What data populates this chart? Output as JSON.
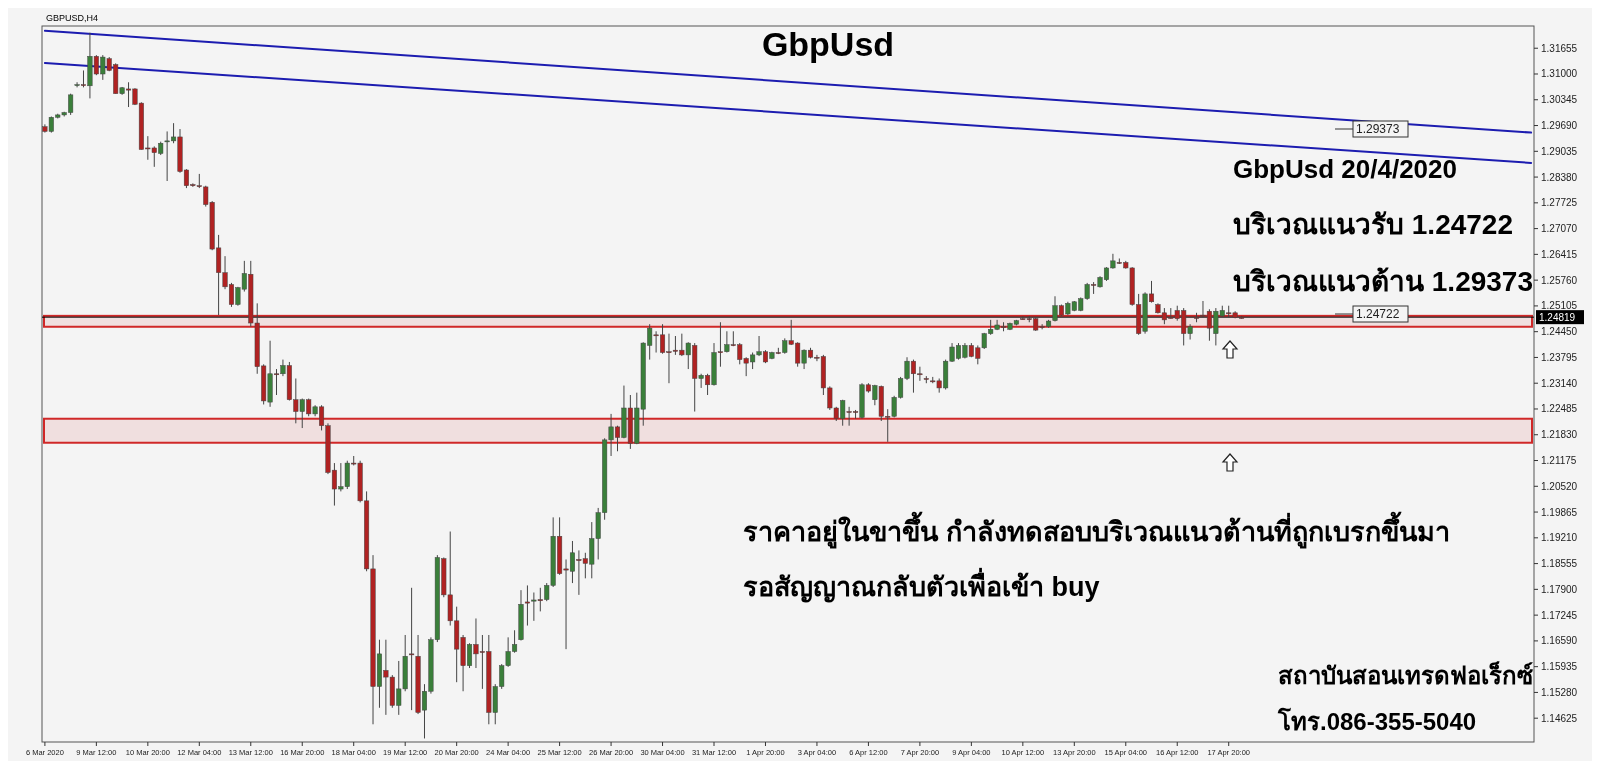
{
  "chart_data": {
    "type": "candlestick",
    "title": "GbpUsd",
    "categories": [
      "6 Mar 2020",
      null,
      null,
      null,
      null,
      null,
      null,
      null,
      "9 Mar 12:00",
      null,
      null,
      null,
      null,
      null,
      null,
      null,
      "10 Mar 20:00",
      null,
      null,
      null,
      null,
      null,
      null,
      null,
      "12 Mar 04:00",
      null,
      null,
      null,
      null,
      null,
      null,
      null,
      "13 Mar 12:00",
      null,
      null,
      null,
      null,
      null,
      null,
      null,
      "16 Mar 20:00",
      null,
      null,
      null,
      null,
      null,
      null,
      null,
      "18 Mar 04:00",
      null,
      null,
      null,
      null,
      null,
      null,
      null,
      "19 Mar 12:00",
      null,
      null,
      null,
      null,
      null,
      null,
      null,
      "20 Mar 20:00",
      null,
      null,
      null,
      null,
      null,
      null,
      null,
      "24 Mar 04:00",
      null,
      null,
      null,
      null,
      null,
      null,
      null,
      "25 Mar 12:00",
      null,
      null,
      null,
      null,
      null,
      null,
      null,
      "26 Mar 20:00",
      null,
      null,
      null,
      null,
      null,
      null,
      null,
      "30 Mar 04:00",
      null,
      null,
      null,
      null,
      null,
      null,
      null,
      "31 Mar 12:00",
      null,
      null,
      null,
      null,
      null,
      null,
      null,
      "1 Apr 20:00",
      null,
      null,
      null,
      null,
      null,
      null,
      null,
      "3 Apr 04:00",
      null,
      null,
      null,
      null,
      null,
      null,
      null,
      "6 Apr 12:00",
      null,
      null,
      null,
      null,
      null,
      null,
      null,
      "7 Apr 20:00",
      null,
      null,
      null,
      null,
      null,
      null,
      null,
      "9 Apr 04:00",
      null,
      null,
      null,
      null,
      null,
      null,
      null,
      "10 Apr 12:00",
      null,
      null,
      null,
      null,
      null,
      null,
      null,
      "13 Apr 20:00",
      null,
      null,
      null,
      null,
      null,
      null,
      null,
      "15 Apr 04:00",
      null,
      null,
      null,
      null,
      null,
      null,
      null,
      "16 Apr 12:00",
      null,
      null,
      null,
      null,
      null,
      null,
      null,
      "17 Apr 20:00",
      null,
      null,
      null,
      null,
      null,
      null,
      null,
      null,
      null,
      null,
      null,
      null,
      null,
      null,
      null,
      null,
      null,
      null,
      null,
      null,
      null,
      null,
      null,
      null,
      null,
      null,
      null,
      null,
      null,
      null,
      null,
      null,
      null,
      null,
      null,
      null,
      null,
      null,
      null,
      null,
      null,
      null,
      null,
      null,
      null,
      null,
      null
    ],
    "ohlc": [
      [
        1.2966,
        1.2972,
        1.2951,
        1.2954
      ],
      [
        1.2954,
        1.2992,
        1.2951,
        1.299
      ],
      [
        1.299,
        1.2999,
        1.2987,
        1.2996
      ],
      [
        1.2996,
        1.3004,
        1.2992,
        1.3002
      ],
      [
        1.3002,
        1.305,
        1.2996,
        1.3047
      ],
      [
        1.3071,
        1.3079,
        1.3066,
        1.3073
      ],
      [
        1.3073,
        1.3109,
        1.3066,
        1.3071
      ],
      [
        1.307,
        1.3205,
        1.3038,
        1.3145
      ],
      [
        1.3145,
        1.3148,
        1.3097,
        1.31
      ],
      [
        1.31,
        1.3148,
        1.3085,
        1.3143
      ],
      [
        1.3139,
        1.3143,
        1.3107,
        1.3109
      ],
      [
        1.3124,
        1.3127,
        1.305,
        1.305
      ],
      [
        1.305,
        1.3067,
        1.3047,
        1.3065
      ],
      [
        1.3062,
        1.3079,
        1.3016,
        1.3059
      ],
      [
        1.3062,
        1.3064,
        1.3021,
        1.3023
      ],
      [
        1.3026,
        1.3028,
        1.2908,
        1.2908
      ],
      [
        1.2912,
        1.2942,
        1.2882,
        1.291
      ],
      [
        1.2912,
        1.2916,
        1.2864,
        1.29
      ],
      [
        1.2898,
        1.2928,
        1.2894,
        1.2924
      ],
      [
        1.2928,
        1.2954,
        1.2828,
        1.293
      ],
      [
        1.293,
        1.2975,
        1.2924,
        1.294
      ],
      [
        1.294,
        1.296,
        1.2849,
        1.2852
      ],
      [
        1.2856,
        1.2858,
        1.281,
        1.2816
      ],
      [
        1.2819,
        1.2822,
        1.2813,
        1.2816
      ],
      [
        1.2816,
        1.2846,
        1.281,
        1.2814
      ],
      [
        1.2813,
        1.2816,
        1.2763,
        1.2768
      ],
      [
        1.2774,
        1.2777,
        1.2652,
        1.2655
      ],
      [
        1.2658,
        1.2691,
        1.2487,
        1.2595
      ],
      [
        1.2595,
        1.2637,
        1.2553,
        1.2559
      ],
      [
        1.2565,
        1.2569,
        1.2508,
        1.2514
      ],
      [
        1.2514,
        1.2559,
        1.2511,
        1.2557
      ],
      [
        1.2553,
        1.2625,
        1.2547,
        1.2593
      ],
      [
        1.2591,
        1.2625,
        1.2458,
        1.2467
      ],
      [
        1.2467,
        1.2517,
        1.2338,
        1.2356
      ],
      [
        1.2358,
        1.2362,
        1.226,
        1.2269
      ],
      [
        1.2266,
        1.2422,
        1.2254,
        1.2338
      ],
      [
        1.2338,
        1.235,
        1.2284,
        1.2337
      ],
      [
        1.2338,
        1.2374,
        1.2332,
        1.2359
      ],
      [
        1.2359,
        1.2368,
        1.227,
        1.2272
      ],
      [
        1.2272,
        1.2326,
        1.2212,
        1.2242
      ],
      [
        1.2242,
        1.2275,
        1.22,
        1.2272
      ],
      [
        1.2272,
        1.2275,
        1.223,
        1.2236
      ],
      [
        1.2236,
        1.2258,
        1.223,
        1.2254
      ],
      [
        1.2254,
        1.2258,
        1.2194,
        1.2206
      ],
      [
        1.2206,
        1.2212,
        1.2083,
        1.2087
      ],
      [
        1.2093,
        1.2111,
        1.2003,
        1.2045
      ],
      [
        1.2045,
        1.2111,
        1.2039,
        1.2051
      ],
      [
        1.2051,
        1.2117,
        1.2045,
        1.2111
      ],
      [
        1.2111,
        1.2129,
        1.2105,
        1.2109
      ],
      [
        1.2111,
        1.2117,
        1.2011,
        1.2015
      ],
      [
        1.2015,
        1.2039,
        1.1836,
        1.1842
      ],
      [
        1.1842,
        1.1877,
        1.1447,
        1.1543
      ],
      [
        1.1543,
        1.1662,
        1.1489,
        1.1626
      ],
      [
        1.1584,
        1.1662,
        1.1471,
        1.1567
      ],
      [
        1.1567,
        1.1572,
        1.1489,
        1.1495
      ],
      [
        1.1495,
        1.1608,
        1.1471,
        1.1537
      ],
      [
        1.1537,
        1.1674,
        1.1531,
        1.162
      ],
      [
        1.1626,
        1.1794,
        1.1483,
        1.1624
      ],
      [
        1.162,
        1.1674,
        1.1473,
        1.1477
      ],
      [
        1.1483,
        1.1549,
        1.1411,
        1.1531
      ],
      [
        1.1531,
        1.1668,
        1.1525,
        1.1662
      ],
      [
        1.1662,
        1.1877,
        1.1656,
        1.1871
      ],
      [
        1.1868,
        1.1871,
        1.177,
        1.1776
      ],
      [
        1.1776,
        1.1937,
        1.1698,
        1.171
      ],
      [
        1.171,
        1.1746,
        1.1554,
        1.1638
      ],
      [
        1.1668,
        1.1674,
        1.1531,
        1.1596
      ],
      [
        1.1596,
        1.1653,
        1.159,
        1.165
      ],
      [
        1.165,
        1.1716,
        1.159,
        1.1626
      ],
      [
        1.1632,
        1.1674,
        1.1537,
        1.163
      ],
      [
        1.1632,
        1.1674,
        1.1447,
        1.1477
      ],
      [
        1.1477,
        1.1549,
        1.1447,
        1.1543
      ],
      [
        1.1543,
        1.16,
        1.1537,
        1.1596
      ],
      [
        1.1596,
        1.1668,
        1.1593,
        1.1632
      ],
      [
        1.1632,
        1.1686,
        1.1629,
        1.165
      ],
      [
        1.1662,
        1.1788,
        1.166,
        1.1752
      ],
      [
        1.1758,
        1.18,
        1.1698,
        1.1755
      ],
      [
        1.176,
        1.1782,
        1.171,
        1.1763
      ],
      [
        1.1764,
        1.1794,
        1.1734,
        1.1761
      ],
      [
        1.1764,
        1.1806,
        1.176,
        1.18
      ],
      [
        1.18,
        1.1973,
        1.1796,
        1.1925
      ],
      [
        1.1925,
        1.1973,
        1.1827,
        1.183
      ],
      [
        1.1842,
        1.1866,
        1.1638,
        1.1839
      ],
      [
        1.1836,
        1.1913,
        1.1806,
        1.1883
      ],
      [
        1.1866,
        1.1889,
        1.1776,
        1.1863
      ],
      [
        1.1868,
        1.1883,
        1.1818,
        1.1856
      ],
      [
        1.1854,
        1.1961,
        1.1818,
        1.1919
      ],
      [
        1.1919,
        1.1997,
        1.1866,
        1.1985
      ],
      [
        1.1985,
        1.2174,
        1.1967,
        1.217
      ],
      [
        1.217,
        1.2236,
        1.2129,
        1.2203
      ],
      [
        1.2203,
        1.2206,
        1.2141,
        1.2176
      ],
      [
        1.2176,
        1.2308,
        1.2174,
        1.2251
      ],
      [
        1.2251,
        1.2284,
        1.2147,
        1.2161
      ],
      [
        1.2161,
        1.229,
        1.2159,
        1.2251
      ],
      [
        1.2248,
        1.2418,
        1.2206,
        1.2416
      ],
      [
        1.241,
        1.2464,
        1.2374,
        1.2454
      ],
      [
        1.2437,
        1.2446,
        1.2392,
        1.2435
      ],
      [
        1.2437,
        1.2464,
        1.2389,
        1.2392
      ],
      [
        1.2394,
        1.244,
        1.2314,
        1.2392
      ],
      [
        1.2398,
        1.2434,
        1.2386,
        1.2395
      ],
      [
        1.2398,
        1.244,
        1.2383,
        1.2386
      ],
      [
        1.2386,
        1.2418,
        1.235,
        1.2416
      ],
      [
        1.241,
        1.2416,
        1.2242,
        1.2326
      ],
      [
        1.2326,
        1.2338,
        1.2302,
        1.2334
      ],
      [
        1.2334,
        1.2338,
        1.2284,
        1.231
      ],
      [
        1.231,
        1.2416,
        1.2308,
        1.2392
      ],
      [
        1.2394,
        1.2469,
        1.2356,
        1.2392
      ],
      [
        1.2394,
        1.2446,
        1.2392,
        1.2412
      ],
      [
        1.2412,
        1.2446,
        1.2408,
        1.241
      ],
      [
        1.2412,
        1.2416,
        1.2362,
        1.2374
      ],
      [
        1.2377,
        1.238,
        1.2332,
        1.2365
      ],
      [
        1.2368,
        1.2392,
        1.235,
        1.2386
      ],
      [
        1.2386,
        1.2434,
        1.2383,
        1.2394
      ],
      [
        1.2394,
        1.2398,
        1.2365,
        1.2368
      ],
      [
        1.2377,
        1.2394,
        1.2375,
        1.2392
      ],
      [
        1.2392,
        1.2404,
        1.2388,
        1.2391
      ],
      [
        1.2392,
        1.2428,
        1.2389,
        1.2422
      ],
      [
        1.2422,
        1.2475,
        1.2411,
        1.2413
      ],
      [
        1.2416,
        1.2418,
        1.2356,
        1.2365
      ],
      [
        1.2365,
        1.24,
        1.235,
        1.2398
      ],
      [
        1.2398,
        1.2404,
        1.2377,
        1.238
      ],
      [
        1.238,
        1.2386,
        1.237,
        1.2378
      ],
      [
        1.2382,
        1.2386,
        1.2284,
        1.2302
      ],
      [
        1.2302,
        1.2306,
        1.2246,
        1.2251
      ],
      [
        1.2251,
        1.2254,
        1.2218,
        1.2224
      ],
      [
        1.2224,
        1.2272,
        1.2206,
        1.227
      ],
      [
        1.2242,
        1.2254,
        1.2206,
        1.2241
      ],
      [
        1.2242,
        1.2246,
        1.2224,
        1.2241
      ],
      [
        1.2227,
        1.2314,
        1.2224,
        1.231
      ],
      [
        1.231,
        1.2314,
        1.229,
        1.2294
      ],
      [
        1.2272,
        1.231,
        1.2258,
        1.2308
      ],
      [
        1.2306,
        1.2308,
        1.2218,
        1.223
      ],
      [
        1.223,
        1.2248,
        1.2165,
        1.2229
      ],
      [
        1.223,
        1.2282,
        1.2227,
        1.2278
      ],
      [
        1.2278,
        1.233,
        1.2275,
        1.2326
      ],
      [
        1.2326,
        1.238,
        1.2322,
        1.237
      ],
      [
        1.237,
        1.2374,
        1.229,
        1.2338
      ],
      [
        1.2338,
        1.2356,
        1.232,
        1.2337
      ],
      [
        1.2326,
        1.2332,
        1.2314,
        1.2325
      ],
      [
        1.232,
        1.233,
        1.2314,
        1.2319
      ],
      [
        1.232,
        1.2326,
        1.229,
        1.2302
      ],
      [
        1.2302,
        1.2374,
        1.2298,
        1.237
      ],
      [
        1.237,
        1.2416,
        1.2368,
        1.2406
      ],
      [
        1.2377,
        1.2416,
        1.2374,
        1.241
      ],
      [
        1.238,
        1.2416,
        1.2377,
        1.241
      ],
      [
        1.241,
        1.2416,
        1.238,
        1.2382
      ],
      [
        1.2404,
        1.241,
        1.2362,
        1.2377
      ],
      [
        1.2404,
        1.2442,
        1.2401,
        1.244
      ],
      [
        1.244,
        1.2475,
        1.2437,
        1.2451
      ],
      [
        1.2451,
        1.2475,
        1.2449,
        1.2462
      ],
      [
        1.2458,
        1.2469,
        1.2446,
        1.2456
      ],
      [
        1.2451,
        1.2468,
        1.2449,
        1.2466
      ],
      [
        1.2464,
        1.2475,
        1.2461,
        1.2473
      ],
      [
        1.2478,
        1.2484,
        1.2475,
        1.2477
      ],
      [
        1.2478,
        1.2485,
        1.2469,
        1.2477
      ],
      [
        1.2478,
        1.2481,
        1.2447,
        1.2449
      ],
      [
        1.2458,
        1.2464,
        1.2451,
        1.2456
      ],
      [
        1.2458,
        1.2475,
        1.2455,
        1.2472
      ],
      [
        1.2473,
        1.2535,
        1.2471,
        1.2511
      ],
      [
        1.2511,
        1.2514,
        1.2485,
        1.2487
      ],
      [
        1.249,
        1.2521,
        1.2487,
        1.2517
      ],
      [
        1.2499,
        1.2523,
        1.2497,
        1.2521
      ],
      [
        1.2499,
        1.2532,
        1.2497,
        1.2529
      ],
      [
        1.2529,
        1.2569,
        1.2526,
        1.2565
      ],
      [
        1.2565,
        1.2571,
        1.2541,
        1.2563
      ],
      [
        1.2559,
        1.2586,
        1.2557,
        1.2583
      ],
      [
        1.2577,
        1.2609,
        1.2574,
        1.2607
      ],
      [
        1.2607,
        1.2643,
        1.2605,
        1.2625
      ],
      [
        1.2621,
        1.2631,
        1.2617,
        1.262
      ],
      [
        1.2621,
        1.2625,
        1.2605,
        1.2607
      ],
      [
        1.2607,
        1.2609,
        1.2511,
        1.2514
      ],
      [
        1.2514,
        1.2541,
        1.2437,
        1.244
      ],
      [
        1.2446,
        1.2545,
        1.244,
        1.2541
      ],
      [
        1.2541,
        1.2574,
        1.2519,
        1.2521
      ],
      [
        1.2514,
        1.2517,
        1.2491,
        1.2493
      ],
      [
        1.2493,
        1.2505,
        1.2464,
        1.2475
      ],
      [
        1.2481,
        1.2505,
        1.2478,
        1.248
      ],
      [
        1.2499,
        1.2511,
        1.2473,
        1.2478
      ],
      [
        1.2499,
        1.2505,
        1.241,
        1.244
      ],
      [
        1.244,
        1.2464,
        1.2425,
        1.2458
      ],
      [
        1.2481,
        1.2493,
        1.2469,
        1.248
      ],
      [
        1.2487,
        1.2523,
        1.2481,
        1.2486
      ],
      [
        1.2497,
        1.2502,
        1.2422,
        1.2454
      ],
      [
        1.244,
        1.2505,
        1.241,
        1.2497
      ],
      [
        1.2485,
        1.2511,
        1.2483,
        1.2499
      ],
      [
        1.2493,
        1.2511,
        1.2481,
        1.2492
      ],
      [
        1.2493,
        1.2497,
        1.2479,
        1.2481
      ],
      [
        1.2481,
        1.2485,
        1.2478,
        1.248
      ],
      null,
      null,
      null,
      null,
      null,
      null,
      null,
      null,
      null,
      null,
      null,
      null,
      null,
      null,
      null,
      null,
      null,
      null,
      null,
      null,
      null,
      null,
      null,
      null,
      null,
      null,
      null,
      null,
      null,
      null,
      null,
      null,
      null,
      null,
      null,
      null,
      null,
      null,
      null,
      null,
      null,
      null,
      null,
      null,
      null
    ],
    "series": [
      {
        "type": "line",
        "color": "#1c1cb0",
        "values": [
          1.321,
          null,
          null,
          null,
          null,
          null,
          null,
          null,
          null,
          null,
          null,
          null,
          null,
          null,
          null,
          null,
          null,
          null,
          null,
          null,
          null,
          null,
          null,
          null,
          null,
          null,
          null,
          null,
          null,
          null,
          null,
          null,
          null,
          null,
          null,
          null,
          null,
          null,
          null,
          null,
          null,
          null,
          null,
          null,
          null,
          null,
          null,
          null,
          null,
          null,
          null,
          null,
          null,
          null,
          null,
          null,
          null,
          null,
          null,
          null,
          null,
          null,
          null,
          null,
          null,
          null,
          null,
          null,
          null,
          null,
          null,
          null,
          null,
          null,
          null,
          null,
          null,
          null,
          null,
          null,
          null,
          null,
          null,
          null,
          null,
          null,
          null,
          null,
          null,
          null,
          null,
          null,
          null,
          null,
          null,
          null,
          null,
          null,
          null,
          null,
          null,
          null,
          null,
          null,
          null,
          null,
          null,
          null,
          null,
          null,
          null,
          null,
          null,
          null,
          null,
          null,
          null,
          null,
          null,
          null,
          null,
          null,
          null,
          null,
          null,
          null,
          null,
          null,
          null,
          null,
          null,
          null,
          null,
          null,
          null,
          null,
          null,
          null,
          null,
          null,
          null,
          null,
          null,
          null,
          null,
          null,
          null,
          null,
          null,
          null,
          null,
          null,
          null,
          null,
          null,
          null,
          null,
          null,
          null,
          null,
          null,
          null,
          null,
          null,
          null,
          null,
          null,
          null,
          null,
          null,
          null,
          null,
          null,
          null,
          null,
          null,
          null,
          null,
          null,
          null,
          null,
          null,
          null,
          null,
          null,
          null,
          null,
          null,
          null,
          null,
          null,
          null,
          null,
          null,
          null,
          null,
          null,
          null,
          null,
          null,
          null,
          null,
          null,
          null,
          null,
          null,
          null,
          null,
          null,
          null,
          null,
          null,
          null,
          null,
          null,
          null,
          null,
          null,
          null,
          null,
          null,
          null,
          null,
          null,
          null,
          null,
          null,
          null,
          null,
          null,
          null,
          1.2951
        ]
      },
      {
        "type": "line",
        "color": "#1c1cb0",
        "values": [
          1.3128,
          null,
          null,
          null,
          null,
          null,
          null,
          null,
          null,
          null,
          null,
          null,
          null,
          null,
          null,
          null,
          null,
          null,
          null,
          null,
          null,
          null,
          null,
          null,
          null,
          null,
          null,
          null,
          null,
          null,
          null,
          null,
          null,
          null,
          null,
          null,
          null,
          null,
          null,
          null,
          null,
          null,
          null,
          null,
          null,
          null,
          null,
          null,
          null,
          null,
          null,
          null,
          null,
          null,
          null,
          null,
          null,
          null,
          null,
          null,
          null,
          null,
          null,
          null,
          null,
          null,
          null,
          null,
          null,
          null,
          null,
          null,
          null,
          null,
          null,
          null,
          null,
          null,
          null,
          null,
          null,
          null,
          null,
          null,
          null,
          null,
          null,
          null,
          null,
          null,
          null,
          null,
          null,
          null,
          null,
          null,
          null,
          null,
          null,
          null,
          null,
          null,
          null,
          null,
          null,
          null,
          null,
          null,
          null,
          null,
          null,
          null,
          null,
          null,
          null,
          null,
          null,
          null,
          null,
          null,
          null,
          null,
          null,
          null,
          null,
          null,
          null,
          null,
          null,
          null,
          null,
          null,
          null,
          null,
          null,
          null,
          null,
          null,
          null,
          null,
          null,
          null,
          null,
          null,
          null,
          null,
          null,
          null,
          null,
          null,
          null,
          null,
          null,
          null,
          null,
          null,
          null,
          null,
          null,
          null,
          null,
          null,
          null,
          null,
          null,
          null,
          null,
          null,
          null,
          null,
          null,
          null,
          null,
          null,
          null,
          null,
          null,
          null,
          null,
          null,
          null,
          null,
          null,
          null,
          null,
          null,
          null,
          null,
          null,
          null,
          null,
          null,
          null,
          null,
          null,
          null,
          null,
          null,
          null,
          null,
          null,
          null,
          null,
          null,
          null,
          null,
          null,
          null,
          null,
          null,
          null,
          null,
          null,
          null,
          null,
          null,
          null,
          null,
          null,
          null,
          null,
          null,
          null,
          null,
          null,
          null,
          null,
          null,
          null,
          null,
          null,
          1.2874
        ]
      }
    ],
    "ylim": [
      1.1402,
      1.3222
    ],
    "yticks": [
      1.31655,
      {
        "value": 1.31,
        "label": "1.31000"
      },
      1.30345,
      {
        "value": 1.2969,
        "label": "1.29690"
      },
      1.29035,
      {
        "value": 1.2838,
        "label": "1.28380"
      },
      1.27725,
      {
        "value": 1.2707,
        "label": "1.27070"
      },
      1.26415,
      {
        "value": 1.2576,
        "label": "1.25760"
      },
      1.25105,
      {
        "value": 1.2445,
        "label": "1.24450"
      },
      1.23795,
      {
        "value": 1.2314,
        "label": "1.23140"
      },
      1.22485,
      {
        "value": 1.2183,
        "label": "1.21830"
      },
      1.21175,
      {
        "value": 1.2052,
        "label": "1.20520"
      },
      1.19865,
      {
        "value": 1.1921,
        "label": "1.19210"
      },
      1.18555,
      {
        "value": 1.179,
        "label": "1.17900"
      },
      1.17245,
      {
        "value": 1.1659,
        "label": "1.16590"
      },
      1.15935,
      {
        "value": 1.1528,
        "label": "1.15280"
      },
      1.14625
    ],
    "ref_lines": [
      {
        "axis": "y",
        "value": 1.24819,
        "label": "1.24819",
        "color": "#000000"
      }
    ],
    "bands": [
      {
        "axis": "y",
        "from": 1.24575,
        "to": 1.24852,
        "color": "#d02828"
      },
      {
        "axis": "y",
        "from": 1.21627,
        "to": 1.22237,
        "color": "#d02828"
      }
    ],
    "annotations": [
      "GBPUSD,H4",
      "1.29373",
      "1.24722",
      "GbpUsd 20/4/2020",
      "บริเวณแนวรับ 1.24722",
      "บริเวณแนวต้าน 1.29373",
      "ราคาอยู่ในขาขึ้น กำลังทดสอบบริเวณแนวต้านที่ถูกเบรกขึ้นมา",
      "รอสัญญาณกลับตัวเพื่อเข้า buy",
      "สถาบันสอนเทรดฟอเร็กซ์",
      "โทร.086-355-5040"
    ],
    "grid": false
  }
}
